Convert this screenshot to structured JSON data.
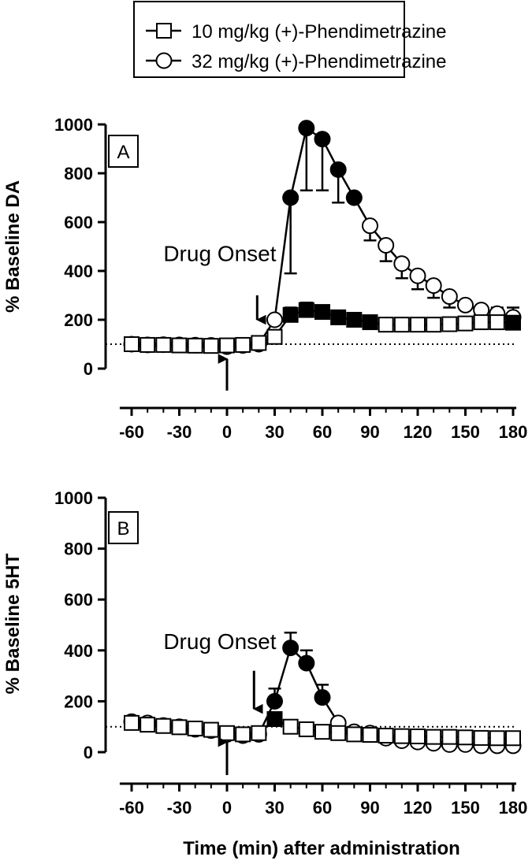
{
  "legend": {
    "entries": [
      {
        "label": "10 mg/kg (+)-Phendimetrazine",
        "marker": "open-square"
      },
      {
        "label": "32 mg/kg (+)-Phendimetrazine",
        "marker": "open-circle"
      }
    ],
    "placement": "top-center"
  },
  "colors": {
    "ink": "#000000",
    "open_fill": "#ffffff",
    "significant_fill": "#000000"
  },
  "chart_data": [
    {
      "type": "line",
      "panel_label": "A",
      "ylabel": "% Baseline DA",
      "xlabel": "",
      "xlim": [
        -65,
        182
      ],
      "ylim": [
        0,
        1000
      ],
      "x_ticks": [
        -60,
        -30,
        0,
        30,
        60,
        90,
        120,
        150,
        180
      ],
      "x_tick_labels": [
        "-60",
        "-30",
        "0",
        "30",
        "60",
        "90",
        "120",
        "150",
        "180"
      ],
      "y_ticks": [
        0,
        200,
        400,
        600,
        800,
        1000
      ],
      "y_tick_labels": [
        "0",
        "200",
        "400",
        "600",
        "800",
        "1000"
      ],
      "baseline": 100,
      "annotations": [
        {
          "text": "Drug Onset",
          "x": -40,
          "y": 440
        },
        {
          "arrow": "down",
          "x": 19,
          "from": 300,
          "to": 200
        },
        {
          "arrow": "up",
          "x": 0,
          "from": -90,
          "to": 40
        }
      ],
      "series": [
        {
          "name": "10 mg/kg (+)-Phendimetrazine",
          "marker": "square",
          "x": [
            -60,
            -50,
            -40,
            -30,
            -20,
            -10,
            0,
            10,
            20,
            30,
            40,
            50,
            60,
            70,
            80,
            90,
            100,
            110,
            120,
            130,
            140,
            150,
            160,
            170,
            180
          ],
          "y": [
            100,
            97,
            97,
            95,
            94,
            93,
            95,
            97,
            105,
            130,
            220,
            240,
            232,
            210,
            200,
            190,
            180,
            180,
            180,
            180,
            182,
            185,
            190,
            190,
            188
          ],
          "error_high": [
            null,
            null,
            null,
            null,
            null,
            null,
            null,
            null,
            null,
            null,
            250,
            270,
            255,
            null,
            null,
            null,
            null,
            null,
            null,
            null,
            null,
            null,
            null,
            null,
            null
          ],
          "significant": [
            false,
            false,
            false,
            false,
            false,
            false,
            false,
            false,
            false,
            false,
            true,
            true,
            true,
            true,
            true,
            true,
            false,
            false,
            false,
            false,
            false,
            false,
            false,
            false,
            true
          ]
        },
        {
          "name": "32 mg/kg (+)-Phendimetrazine",
          "marker": "circle",
          "x": [
            -60,
            -50,
            -40,
            -30,
            -20,
            -10,
            0,
            10,
            20,
            30,
            40,
            50,
            60,
            70,
            80,
            90,
            100,
            110,
            120,
            130,
            140,
            150,
            160,
            170,
            180
          ],
          "y": [
            100,
            97,
            98,
            97,
            96,
            95,
            90,
            95,
            100,
            200,
            700,
            985,
            940,
            815,
            700,
            585,
            505,
            430,
            380,
            340,
            295,
            260,
            240,
            225,
            210
          ],
          "error_low": [
            null,
            null,
            null,
            null,
            null,
            null,
            null,
            null,
            null,
            null,
            390,
            730,
            730,
            680,
            null,
            525,
            440,
            370,
            325,
            290,
            250,
            null,
            null,
            null,
            null
          ],
          "error_high": [
            null,
            null,
            null,
            null,
            null,
            null,
            null,
            null,
            null,
            null,
            null,
            null,
            null,
            null,
            null,
            null,
            null,
            null,
            null,
            null,
            null,
            null,
            null,
            250,
            250
          ],
          "significant": [
            false,
            false,
            false,
            false,
            false,
            false,
            false,
            false,
            false,
            false,
            true,
            true,
            true,
            true,
            true,
            false,
            false,
            false,
            false,
            false,
            false,
            false,
            false,
            false,
            false
          ]
        }
      ]
    },
    {
      "type": "line",
      "panel_label": "B",
      "ylabel": "% Baseline 5HT",
      "xlabel": "Time (min) after administration",
      "xlim": [
        -65,
        182
      ],
      "ylim": [
        0,
        1000
      ],
      "x_ticks": [
        -60,
        -30,
        0,
        30,
        60,
        90,
        120,
        150,
        180
      ],
      "x_tick_labels": [
        "-60",
        "-30",
        "0",
        "30",
        "60",
        "90",
        "120",
        "150",
        "180"
      ],
      "y_ticks": [
        0,
        200,
        400,
        600,
        800,
        1000
      ],
      "y_tick_labels": [
        "0",
        "200",
        "400",
        "600",
        "800",
        "1000"
      ],
      "baseline": 100,
      "annotations": [
        {
          "text": "Drug Onset",
          "x": -40,
          "y": 405
        },
        {
          "arrow": "down",
          "x": 17,
          "from": 320,
          "to": 170
        },
        {
          "arrow": "up",
          "x": 0,
          "from": -90,
          "to": 40
        }
      ],
      "series": [
        {
          "name": "10 mg/kg (+)-Phendimetrazine",
          "marker": "square",
          "x": [
            -60,
            -50,
            -40,
            -30,
            -20,
            -10,
            0,
            10,
            20,
            30,
            40,
            50,
            60,
            70,
            80,
            90,
            100,
            110,
            120,
            130,
            140,
            150,
            160,
            170,
            180
          ],
          "y": [
            115,
            108,
            103,
            98,
            93,
            88,
            75,
            70,
            75,
            130,
            100,
            90,
            80,
            75,
            70,
            68,
            65,
            63,
            62,
            60,
            60,
            58,
            56,
            55,
            55
          ],
          "error_high": [
            null,
            null,
            null,
            null,
            null,
            null,
            null,
            null,
            null,
            null,
            null,
            null,
            null,
            null,
            null,
            null,
            null,
            null,
            null,
            null,
            null,
            null,
            null,
            null,
            null
          ],
          "significant": [
            false,
            false,
            false,
            false,
            false,
            false,
            false,
            false,
            false,
            true,
            false,
            false,
            false,
            false,
            false,
            false,
            false,
            false,
            false,
            false,
            false,
            false,
            false,
            false,
            false
          ]
        },
        {
          "name": "32 mg/kg (+)-Phendimetrazine",
          "marker": "circle",
          "x": [
            -60,
            -50,
            -40,
            -30,
            -20,
            -10,
            0,
            10,
            20,
            30,
            40,
            50,
            60,
            70,
            80,
            90,
            100,
            110,
            120,
            130,
            140,
            150,
            160,
            170,
            180
          ],
          "y": [
            120,
            115,
            105,
            100,
            90,
            85,
            70,
            65,
            70,
            200,
            410,
            350,
            215,
            115,
            80,
            75,
            55,
            45,
            40,
            35,
            30,
            30,
            25,
            25,
            25
          ],
          "error_high": [
            null,
            null,
            null,
            null,
            null,
            null,
            null,
            null,
            null,
            250,
            470,
            400,
            265,
            null,
            null,
            null,
            null,
            null,
            null,
            null,
            null,
            null,
            null,
            null,
            null
          ],
          "significant": [
            false,
            false,
            false,
            false,
            false,
            false,
            false,
            false,
            false,
            true,
            true,
            true,
            true,
            false,
            false,
            false,
            false,
            false,
            false,
            false,
            false,
            false,
            false,
            false,
            false
          ]
        }
      ]
    }
  ]
}
